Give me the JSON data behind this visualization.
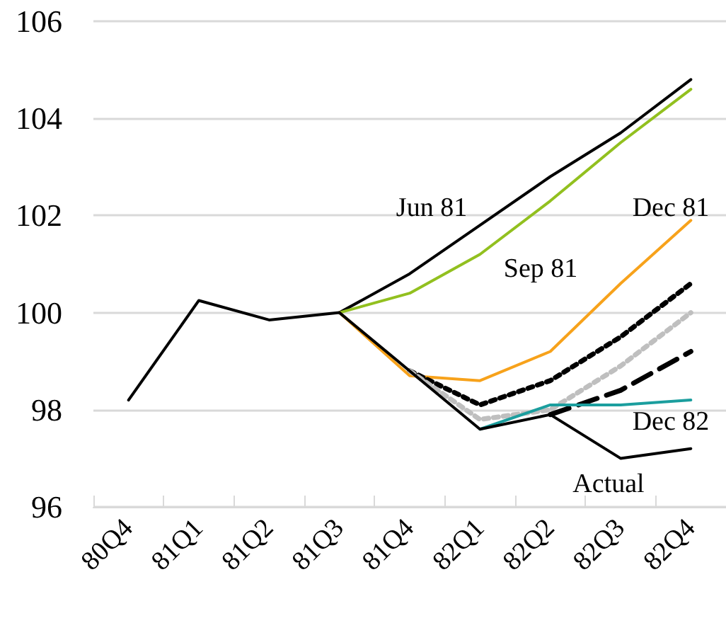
{
  "chart_data": {
    "type": "line",
    "categories": [
      "80Q4",
      "81Q1",
      "81Q2",
      "81Q3",
      "81Q4",
      "82Q1",
      "82Q2",
      "82Q3",
      "82Q4"
    ],
    "series": [
      {
        "color": "#000000",
        "line_style": "solid",
        "values": [
          null,
          null,
          null,
          100,
          100.8,
          101.8,
          102.8,
          103.7,
          104.8
        ]
      },
      {
        "color": "#92c01f",
        "line_style": "solid",
        "values": [
          null,
          null,
          null,
          100,
          100.4,
          101.2,
          102.3,
          103.5,
          104.6
        ]
      },
      {
        "color": "#f7a21b",
        "line_style": "solid",
        "values": [
          null,
          null,
          null,
          100,
          98.7,
          98.6,
          99.2,
          100.6,
          101.9
        ]
      },
      {
        "color": "#000000",
        "line_style": "dotted",
        "values": [
          null,
          null,
          null,
          null,
          98.8,
          98.1,
          98.6,
          99.5,
          100.6
        ]
      },
      {
        "color": "#bfbfbf",
        "line_style": "dotted",
        "values": [
          null,
          null,
          null,
          null,
          98.8,
          97.8,
          98.0,
          98.9,
          100.0
        ]
      },
      {
        "color": "#000000",
        "line_style": "dashed",
        "values": [
          null,
          null,
          null,
          null,
          null,
          null,
          97.9,
          98.4,
          99.2
        ]
      },
      {
        "color": "#1b9e9e",
        "line_style": "solid",
        "values": [
          null,
          null,
          null,
          null,
          null,
          97.6,
          98.1,
          98.1,
          98.2
        ]
      },
      {
        "color": "#000000",
        "line_style": "solid",
        "values": [
          98.2,
          100.25,
          99.85,
          100,
          98.8,
          97.6,
          97.9,
          97.0,
          97.2
        ]
      }
    ],
    "annotations": [
      "Jun 81",
      "Sep 81",
      "Dec 81",
      "Dec 82",
      "Actual"
    ],
    "ylim": [
      96,
      106
    ],
    "yticks": [
      96,
      98,
      100,
      102,
      104,
      106
    ],
    "grid": "y",
    "marker": "none"
  }
}
